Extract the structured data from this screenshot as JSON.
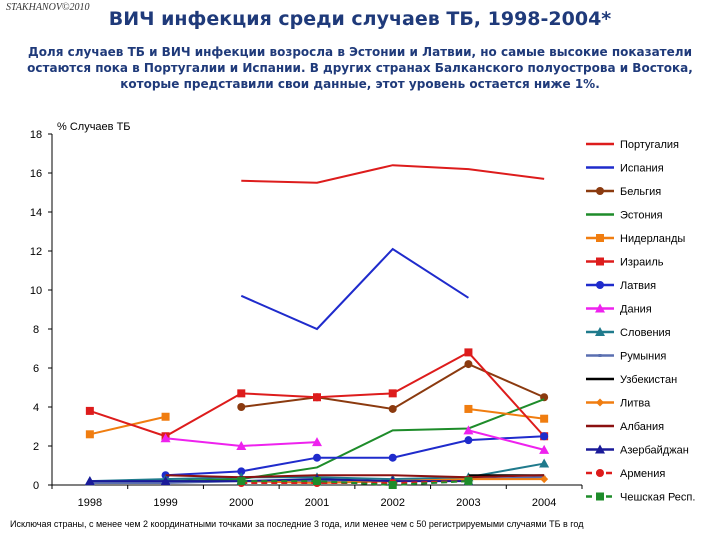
{
  "header": {
    "brand": "STAKHANOV©2010",
    "title": "ВИЧ инфекция среди случаев ТБ, 1998-2004*",
    "subtitle_lines": [
      "Доля случаев ТБ и ВИЧ инфекции возросла в Эстонии и Латвии, но самые высокие показатели",
      "остаются пока в Португалии и Испании.  В других странах Балканского полуострова и Востока,",
      "которые представили свои данные, этот уровень остается ниже  1%."
    ]
  },
  "footnote": "Исключая страны, с менее чем  2 координатными точками  за последние 3 года, или менее чем с  50 регистрируемыми случаями ТБ в год",
  "chart_data": {
    "type": "line",
    "ylabel": "% Случаев ТБ",
    "ylim": [
      0,
      18
    ],
    "yticks": [
      "0",
      "2",
      "4",
      "6",
      "8",
      "10",
      "12",
      "14",
      "16",
      "18"
    ],
    "categories": [
      "1998",
      "1999",
      "2000",
      "2001",
      "2002",
      "2003",
      "2004"
    ],
    "grid": false,
    "legend": "right",
    "series": [
      {
        "name": "Португалия",
        "color": "#dd1c1c",
        "marker": "none",
        "dash": "solid",
        "values": [
          null,
          null,
          15.6,
          15.5,
          16.4,
          16.2,
          15.7
        ]
      },
      {
        "name": "Испания",
        "color": "#1f2bcc",
        "marker": "none",
        "dash": "solid",
        "values": [
          null,
          null,
          9.7,
          8.0,
          12.1,
          9.6,
          null
        ]
      },
      {
        "name": "Бельгия",
        "color": "#8b3a0f",
        "marker": "circle",
        "dash": "solid",
        "values": [
          null,
          null,
          4.0,
          4.5,
          3.9,
          6.2,
          4.5
        ]
      },
      {
        "name": "Эстония",
        "color": "#1e8c2a",
        "marker": "none",
        "dash": "solid",
        "values": [
          0.1,
          0.2,
          0.3,
          0.9,
          2.8,
          2.9,
          4.4
        ]
      },
      {
        "name": "Нидерланды",
        "color": "#f07d10",
        "marker": "square",
        "dash": "solid",
        "values": [
          2.6,
          3.5,
          null,
          null,
          null,
          3.9,
          3.4
        ]
      },
      {
        "name": "Израиль",
        "color": "#dd1c1c",
        "marker": "square",
        "dash": "solid",
        "values": [
          3.8,
          2.5,
          4.7,
          4.5,
          4.7,
          6.8,
          2.5
        ]
      },
      {
        "name": "Латвия",
        "color": "#1f2bcc",
        "marker": "circle",
        "dash": "solid",
        "values": [
          null,
          0.5,
          0.7,
          1.4,
          1.4,
          2.3,
          2.5
        ]
      },
      {
        "name": "Дания",
        "color": "#ee22ee",
        "marker": "triangle",
        "dash": "solid",
        "values": [
          null,
          2.4,
          2.0,
          2.2,
          null,
          2.8,
          1.8
        ]
      },
      {
        "name": "Словения",
        "color": "#1f7a8c",
        "marker": "triangle",
        "dash": "solid",
        "values": [
          0.2,
          0.3,
          0.4,
          0.4,
          0.3,
          0.4,
          1.1
        ]
      },
      {
        "name": "Румыния",
        "color": "#5a6fb0",
        "marker": "small-cross",
        "dash": "solid",
        "values": [
          0.1,
          0.1,
          0.2,
          0.2,
          0.2,
          0.3,
          0.4
        ]
      },
      {
        "name": "Узбекистан",
        "color": "#000000",
        "marker": "none",
        "dash": "solid",
        "values": [
          null,
          null,
          null,
          null,
          null,
          0.5,
          0.5
        ]
      },
      {
        "name": "Литва",
        "color": "#f07d10",
        "marker": "diamond",
        "dash": "solid",
        "values": [
          null,
          null,
          0.2,
          0.1,
          0.2,
          0.3,
          0.3
        ]
      },
      {
        "name": "Албания",
        "color": "#8b1010",
        "marker": "none",
        "dash": "solid",
        "values": [
          null,
          0.5,
          0.4,
          0.5,
          0.5,
          0.4,
          0.5
        ]
      },
      {
        "name": "Азербайджан",
        "color": "#1a1a99",
        "marker": "triangle",
        "dash": "solid",
        "values": [
          0.2,
          0.2,
          0.2,
          0.3,
          0.2,
          0.2,
          null
        ]
      },
      {
        "name": "Армения",
        "color": "#dd1c1c",
        "marker": "circle",
        "dash": "dashed",
        "values": [
          null,
          null,
          0.1,
          0.1,
          0.1,
          0.2,
          null
        ]
      },
      {
        "name": "Чешская Респ.",
        "color": "#1e8c2a",
        "marker": "square",
        "dash": "dashed",
        "values": [
          null,
          null,
          0.2,
          0.2,
          0.0,
          0.2,
          null
        ]
      }
    ]
  }
}
